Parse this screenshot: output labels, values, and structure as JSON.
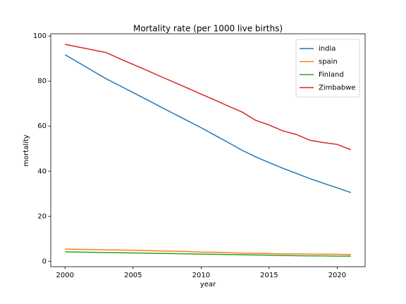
{
  "chart_data": {
    "type": "line",
    "title": "Mortality rate (per 1000 live births)",
    "x_label": "year",
    "y_label": "mortality",
    "x": [
      2000,
      2001,
      2002,
      2003,
      2004,
      2005,
      2006,
      2007,
      2008,
      2009,
      2010,
      2011,
      2012,
      2013,
      2014,
      2015,
      2016,
      2017,
      2018,
      2019,
      2020,
      2021
    ],
    "series": [
      {
        "name": "india",
        "color": "#1f77b4",
        "values": [
          91.7,
          88.2,
          84.6,
          81.1,
          78.0,
          74.9,
          71.8,
          68.6,
          65.5,
          62.4,
          59.3,
          56.0,
          52.7,
          49.3,
          46.4,
          43.8,
          41.3,
          39.0,
          36.7,
          34.6,
          32.6,
          30.5
        ]
      },
      {
        "name": "spain",
        "color": "#ff7f0e",
        "values": [
          5.4,
          5.3,
          5.2,
          5.1,
          5.0,
          4.9,
          4.8,
          4.6,
          4.5,
          4.3,
          4.1,
          4.0,
          3.8,
          3.6,
          3.5,
          3.4,
          3.3,
          3.3,
          3.2,
          3.2,
          3.1,
          3.0
        ]
      },
      {
        "name": "Finland",
        "color": "#2ca02c",
        "values": [
          4.2,
          4.1,
          4.0,
          3.9,
          3.8,
          3.7,
          3.6,
          3.5,
          3.4,
          3.3,
          3.2,
          3.1,
          3.0,
          2.9,
          2.8,
          2.7,
          2.6,
          2.5,
          2.4,
          2.4,
          2.3,
          2.3
        ]
      },
      {
        "name": "Zimbabwe",
        "color": "#d62728",
        "values": [
          96.3,
          95.1,
          93.9,
          92.7,
          90.0,
          87.4,
          84.8,
          82.1,
          79.5,
          76.9,
          74.2,
          71.6,
          68.9,
          66.3,
          62.6,
          60.5,
          57.9,
          56.3,
          53.7,
          52.7,
          51.9,
          49.5
        ]
      }
    ],
    "xlim": [
      1998.95,
      2022.05
    ],
    "xticks": [
      2000,
      2005,
      2010,
      2015,
      2020
    ],
    "ylim": [
      -2.4,
      101.0
    ],
    "yticks": [
      0,
      20,
      40,
      60,
      80,
      100
    ],
    "grid": false,
    "legend": "upper right"
  }
}
